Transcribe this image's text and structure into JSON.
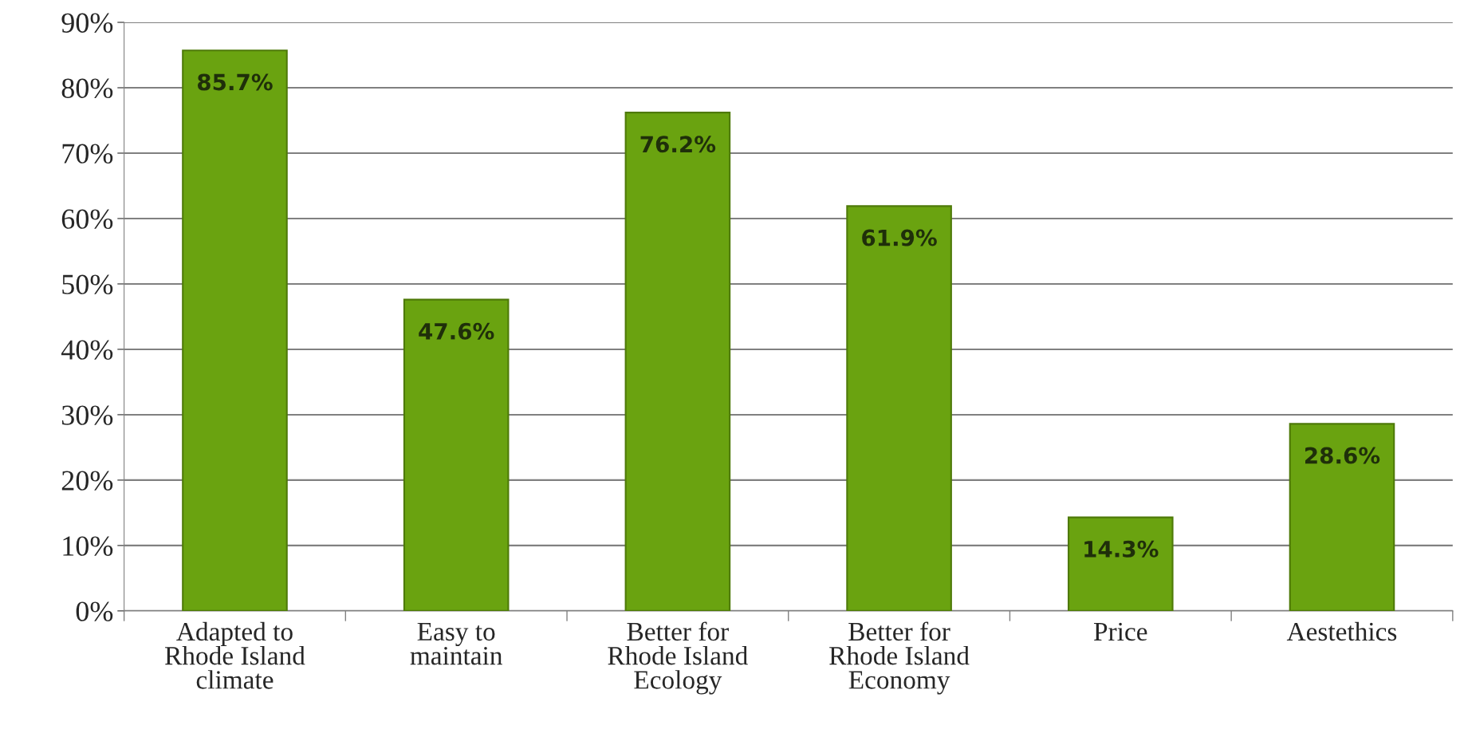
{
  "chart_data": {
    "type": "bar",
    "categories": [
      "Adapted to\nRhode Island\nclimate",
      "Easy to\nmaintain",
      "Better for\nRhode Island\nEcology",
      "Better for\nRhode Island\nEconomy",
      "Price",
      "Aestethics"
    ],
    "values": [
      85.7,
      47.6,
      76.2,
      61.9,
      14.3,
      28.6
    ],
    "value_labels": [
      "85.7%",
      "47.6%",
      "76.2%",
      "61.9%",
      "14.3%",
      "28.6%"
    ],
    "color": "#6aa310",
    "ylim": [
      0,
      90
    ],
    "yticks": [
      {
        "value": 0,
        "label": "0%"
      },
      {
        "value": 10,
        "label": "10%"
      },
      {
        "value": 20,
        "label": "20%"
      },
      {
        "value": 30,
        "label": "30%"
      },
      {
        "value": 40,
        "label": "40%"
      },
      {
        "value": 50,
        "label": "50%"
      },
      {
        "value": 60,
        "label": "60%"
      },
      {
        "value": 70,
        "label": "70%"
      },
      {
        "value": 80,
        "label": "80%"
      },
      {
        "value": 90,
        "label": "90%"
      }
    ],
    "grid": "y",
    "legend": false
  }
}
